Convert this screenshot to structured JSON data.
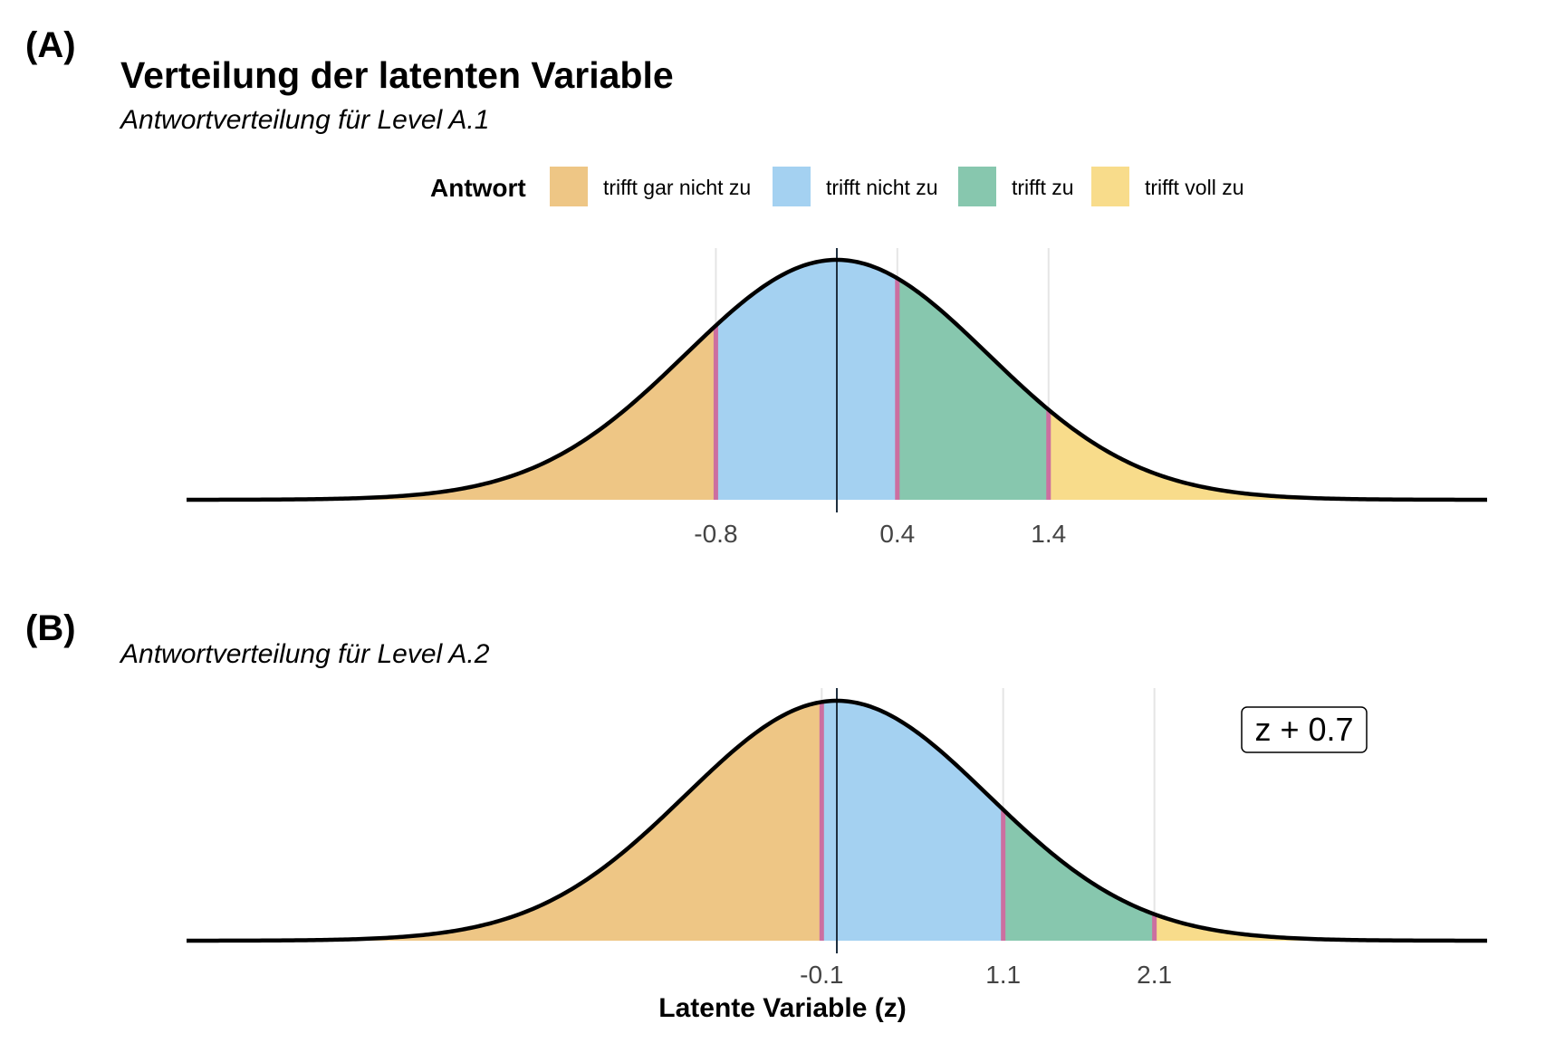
{
  "figure": {
    "title": "Verteilung der latenten Variable",
    "xlabel": "Latente Variable (z)"
  },
  "legend": {
    "title": "Antwort",
    "placement": "top",
    "entries": [
      {
        "label": "trifft gar nicht zu",
        "color": "#EEC685"
      },
      {
        "label": "trifft nicht zu",
        "color": "#A4D1F1"
      },
      {
        "label": "trifft zu",
        "color": "#87C7AE"
      },
      {
        "label": "trifft voll zu",
        "color": "#F8DC8B"
      }
    ]
  },
  "colors": {
    "curve": "#000000",
    "threshold": "#CC6FA0",
    "grid": "#E5E5E5",
    "mean_line": "#1F2F3F"
  },
  "chart_data": [
    {
      "type": "area",
      "panel_tag": "(A)",
      "subtitle": "Antwortverteilung für Level A.1",
      "distribution": "normal",
      "mean": 0,
      "sd": 1,
      "xlim": [
        -4.3,
        4.3
      ],
      "thresholds": [
        -0.8,
        0.4,
        1.4
      ],
      "tick_labels": [
        "-0.8",
        "0.4",
        "1.4"
      ],
      "categories": [
        "trifft gar nicht zu",
        "trifft nicht zu",
        "trifft zu",
        "trifft voll zu"
      ],
      "annotation": ""
    },
    {
      "type": "area",
      "panel_tag": "(B)",
      "subtitle": "Antwortverteilung für Level A.2",
      "distribution": "normal",
      "mean": 0,
      "sd": 1,
      "xlim": [
        -4.3,
        4.3
      ],
      "thresholds": [
        -0.1,
        1.1,
        2.1
      ],
      "tick_labels": [
        "-0.1",
        "1.1",
        "2.1"
      ],
      "categories": [
        "trifft gar nicht zu",
        "trifft nicht zu",
        "trifft zu",
        "trifft voll zu"
      ],
      "annotation": "z + 0.7"
    }
  ]
}
